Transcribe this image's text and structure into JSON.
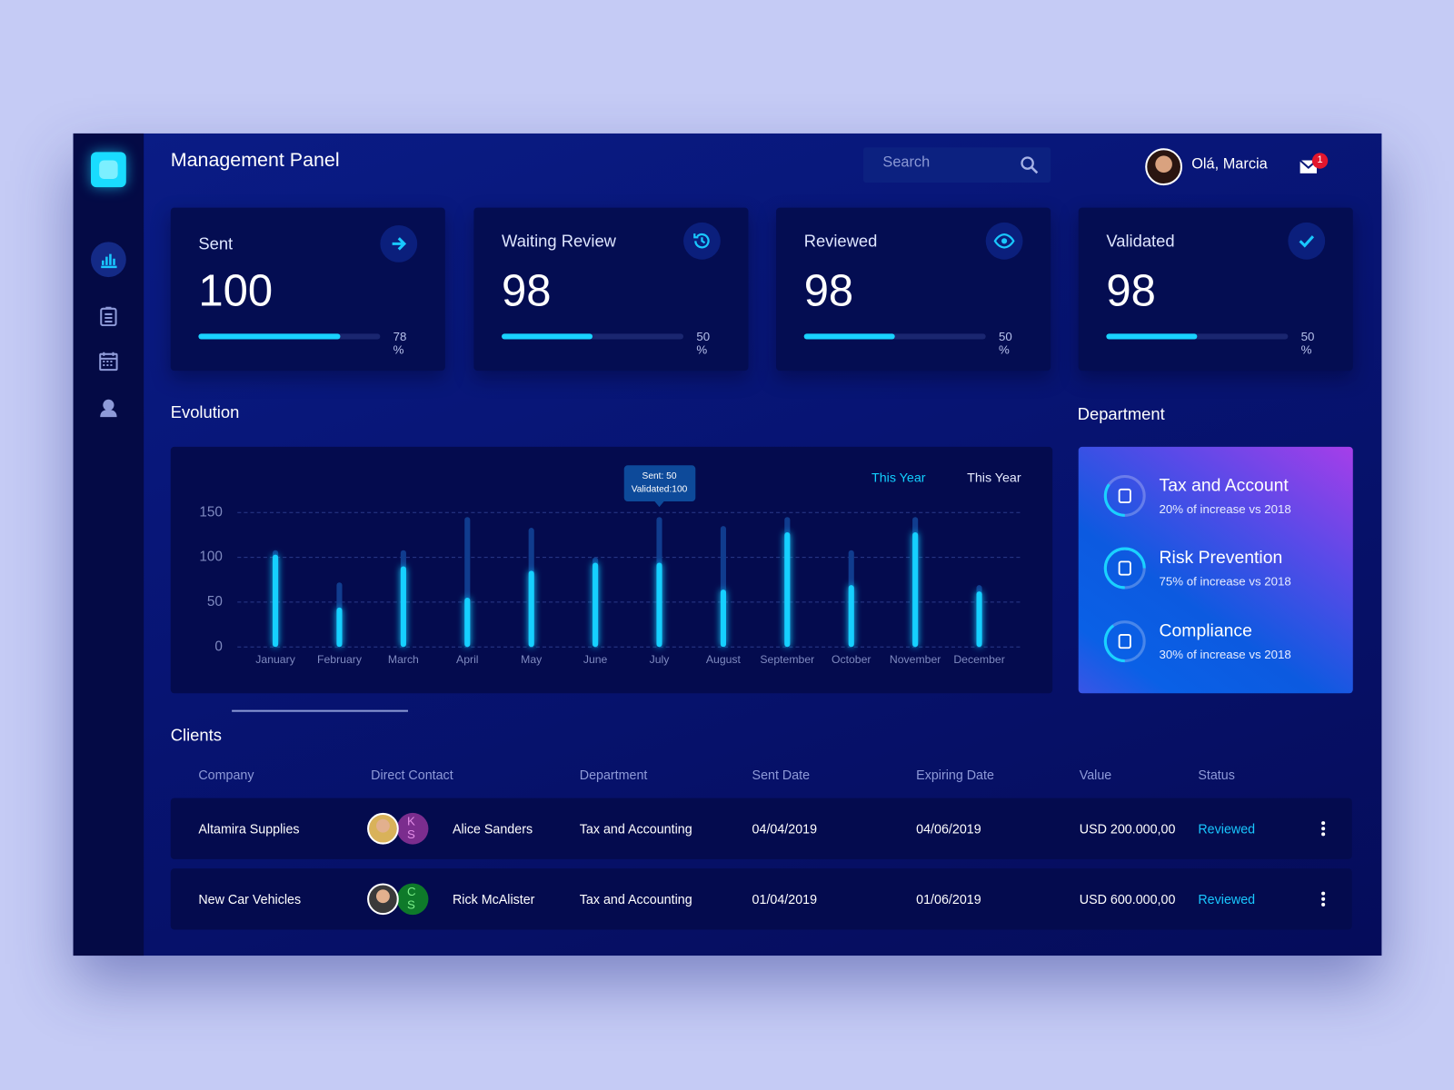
{
  "header": {
    "title": "Management Panel",
    "search_placeholder": "Search",
    "greeting": "Olá, Marcia",
    "notifications": 1
  },
  "stats": [
    {
      "label": "Sent",
      "value": 100,
      "percent": 78,
      "unit": "%"
    },
    {
      "label": "Waiting Review",
      "value": 98,
      "percent": 50,
      "unit": "%"
    },
    {
      "label": "Reviewed",
      "value": 98,
      "percent": 50,
      "unit": "%"
    },
    {
      "label": "Validated",
      "value": 98,
      "percent": 50,
      "unit": "%"
    }
  ],
  "chart_data": {
    "type": "bar",
    "title": "Evolution",
    "categories": [
      "January",
      "February",
      "March",
      "April",
      "May",
      "June",
      "July",
      "August",
      "September",
      "October",
      "November",
      "December"
    ],
    "series": [
      {
        "name": "This Year",
        "color": "#12d0ff",
        "values": [
          103,
          44,
          90,
          55,
          85,
          94,
          94,
          64,
          128,
          69,
          128,
          62
        ]
      },
      {
        "name": "This Year",
        "color": "#103c8e",
        "values": [
          108,
          72,
          108,
          145,
          133,
          100,
          145,
          135,
          145,
          108,
          145,
          69
        ]
      }
    ],
    "ylim": [
      0,
      150
    ],
    "yticks": [
      0,
      50,
      100,
      150
    ],
    "grid": true,
    "tooltip": [
      "Sent: 50",
      "Validated:100"
    ]
  },
  "department": {
    "title": "Department",
    "items": [
      {
        "name": "Tax and Account",
        "note": "20% of increase vs 2018"
      },
      {
        "name": "Risk Prevention",
        "note": "75% of increase vs 2018"
      },
      {
        "name": "Compliance",
        "note": "30% of increase vs 2018"
      }
    ]
  },
  "clients": {
    "title": "Clients",
    "columns": [
      "Company",
      "Direct Contact",
      "Department",
      "Sent Date",
      "Expiring Date",
      "Value",
      "Status"
    ],
    "rows": [
      {
        "company": "Altamira Supplies",
        "initials": [
          "K",
          "S"
        ],
        "contact": "Alice Sanders",
        "department": "Tax and Accounting",
        "sent_date": "04/04/2019",
        "expiring_date": "04/06/2019",
        "value": "USD 200.000,00",
        "status": "Reviewed"
      },
      {
        "company": "New Car Vehicles",
        "initials": [
          "C",
          "S"
        ],
        "contact": "Rick McAlister",
        "department": "Tax and Accounting",
        "sent_date": "01/04/2019",
        "expiring_date": "01/06/2019",
        "value": "USD 600.000,00",
        "status": "Reviewed"
      }
    ]
  }
}
